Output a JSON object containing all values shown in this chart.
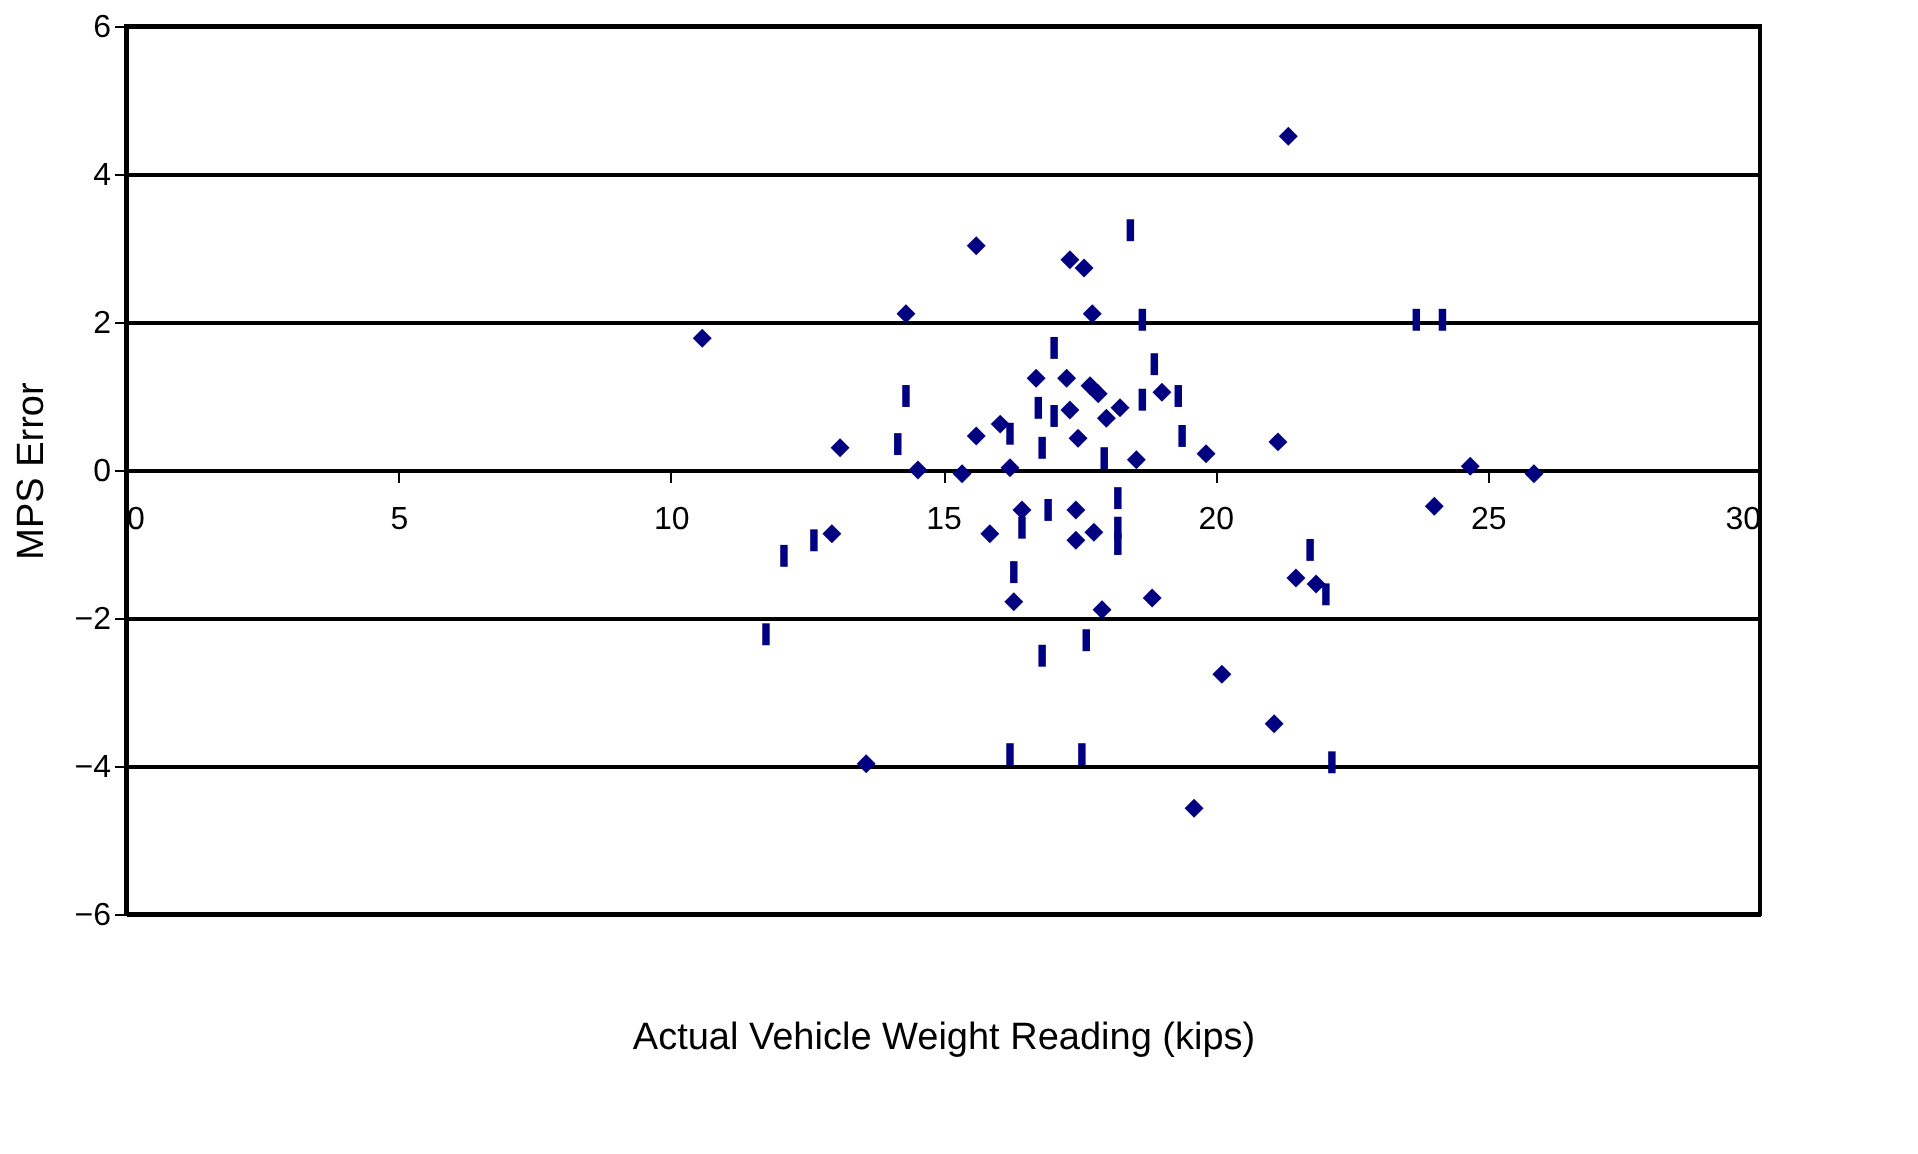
{
  "chart_data": {
    "type": "scatter",
    "xlabel": "Actual Vehicle Weight Reading (kips)",
    "ylabel": "MPS Error",
    "xlim": [
      0,
      30
    ],
    "xticks": [
      0,
      5,
      10,
      15,
      20,
      25,
      30
    ],
    "ylim": [
      -6,
      6
    ],
    "yticks": [
      -6,
      -4,
      -2,
      0,
      2,
      4,
      6
    ],
    "grid": "y",
    "series": [
      {
        "color": "#000080",
        "marker": "diamond",
        "x": [
          10.58,
          13.11,
          14.32,
          14.54,
          15.61,
          15.35,
          15.61,
          16.05,
          16.23,
          16.71,
          16.45,
          21.34,
          17.33,
          17.59,
          17.74,
          17.27,
          17.7,
          17.85,
          17.33,
          18.25,
          18.0,
          19.02,
          17.48,
          18.55,
          19.83,
          21.15,
          17.44,
          12.96,
          15.86,
          16.3,
          13.59,
          17.44,
          17.77,
          17.92,
          18.84,
          21.48,
          21.85,
          20.12,
          21.08,
          19.61,
          24.68,
          25.85,
          24.02
        ],
        "values": [
          1.78,
          0.3,
          2.11,
          0.0,
          3.03,
          -0.05,
          0.46,
          0.62,
          0.03,
          1.24,
          -0.54,
          4.51,
          2.84,
          2.73,
          2.11,
          1.24,
          1.14,
          1.03,
          0.81,
          0.84,
          0.7,
          1.05,
          0.43,
          0.14,
          0.22,
          0.38,
          -0.54,
          -0.86,
          -0.86,
          -1.78,
          -3.97,
          -0.95,
          -0.84,
          -1.89,
          -1.73,
          -1.46,
          -1.54,
          -2.76,
          -3.43,
          -4.57,
          0.05,
          -0.05,
          -0.49
        ]
      },
      {
        "color": "#000080",
        "x": [
          14.32,
          14.17,
          16.23,
          16.75,
          16.82,
          16.93,
          18.44,
          18.66,
          17.04,
          18.88,
          17.04,
          18.66,
          19.32,
          19.39,
          17.96,
          18.21,
          18.21,
          12.08,
          12.63,
          11.75,
          16.3,
          16.82,
          16.23,
          16.45,
          18.21,
          21.74,
          22.03,
          17.63,
          17.55,
          22.14,
          23.69,
          24.17
        ],
        "values": [
          1.0,
          0.35,
          0.49,
          0.84,
          0.3,
          -0.54,
          3.24,
          2.03,
          1.65,
          1.43,
          0.73,
          0.95,
          1.0,
          0.46,
          0.16,
          -0.38,
          -0.78,
          -1.16,
          -0.95,
          -2.22,
          -1.38,
          -2.51,
          -3.84,
          -0.78,
          -1.0,
          -1.08,
          -1.68,
          -2.3,
          -3.84,
          -3.95,
          2.03,
          2.03
        ]
      }
    ]
  }
}
